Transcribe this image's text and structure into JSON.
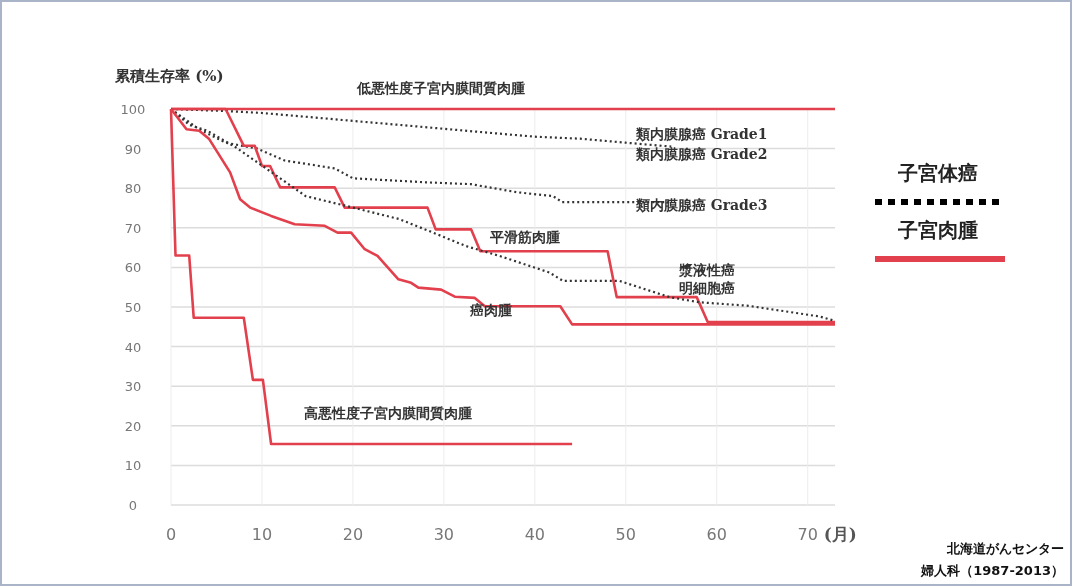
{
  "chart_data": {
    "type": "line",
    "ylabel": "累積生存率 (%)",
    "xlabel": "(月)",
    "xlim": [
      0,
      73
    ],
    "xticks": [
      0,
      10,
      20,
      30,
      40,
      50,
      60,
      70
    ],
    "ylim": [
      0,
      100
    ],
    "yticks": [
      0,
      10,
      20,
      30,
      40,
      50,
      60,
      70,
      80,
      90,
      100
    ],
    "grid": true,
    "marker": "none",
    "series": [
      {
        "name": "低悪性度子宮内膜間質肉腫",
        "color": "#e2404c",
        "line_style": "solid",
        "x": [
          0,
          73
        ],
        "values": [
          100,
          100
        ]
      },
      {
        "name": "類内膜腺癌 Grade1",
        "color": "#333333",
        "line_style": "dotted",
        "x": [
          0,
          6,
          10,
          15,
          20,
          25,
          30,
          35,
          40,
          45,
          50,
          55
        ],
        "values": [
          100,
          99.5,
          99,
          98,
          97,
          96,
          95,
          94,
          93,
          92.5,
          91.5,
          90.5
        ]
      },
      {
        "name": "類内膜腺癌 Grade3",
        "color": "#333333",
        "line_style": "dotted",
        "x": [
          0,
          3,
          6,
          9.5,
          12.5,
          18,
          20,
          28,
          33,
          38,
          42,
          43,
          55
        ],
        "values": [
          100,
          95,
          91.5,
          90,
          87,
          85,
          82.5,
          81.5,
          81,
          79,
          78,
          76.5,
          76.5
        ]
      },
      {
        "name": "平滑筋肉腫",
        "color": "#e2404c",
        "line_style": "solid",
        "x": [
          0,
          6,
          8,
          9.2,
          10,
          10.9,
          12,
          18,
          19.1,
          28.2,
          29.1,
          33,
          34,
          48,
          49,
          57.8,
          59,
          73
        ],
        "values": [
          100,
          100,
          90.7,
          90.7,
          85.6,
          85.6,
          80.2,
          80.2,
          75.1,
          75.1,
          69.6,
          69.6,
          64.1,
          64.1,
          52.5,
          52.5,
          46.2,
          46.2
        ]
      },
      {
        "name": "漿液性癌明細胞癌",
        "color": "#333333",
        "line_style": "dotted",
        "x": [
          0,
          2,
          4,
          7,
          12.7,
          14.8,
          19.3,
          25.1,
          28.8,
          32.4,
          36.1,
          41.6,
          43.1,
          49.3,
          54.8,
          58,
          63.5,
          71.3,
          73
        ],
        "values": [
          100,
          96,
          94.5,
          90.5,
          81.4,
          78,
          75.5,
          72.2,
          68.8,
          65.4,
          62.9,
          58.7,
          56.6,
          56.6,
          52.5,
          51.2,
          50.3,
          47.6,
          46.5
        ]
      },
      {
        "name": "癌肉腫",
        "color": "#e2404c",
        "line_style": "solid",
        "x": [
          0,
          1.7,
          3.1,
          4.2,
          6.5,
          7.6,
          8.7,
          11,
          13.6,
          16.9,
          18.3,
          19.8,
          21.3,
          22.7,
          25,
          26.4,
          27.2,
          29.7,
          31.2,
          33.4,
          34.5,
          42.8,
          44.1,
          73
        ],
        "values": [
          100,
          94.9,
          94.5,
          92.4,
          84,
          77.2,
          75.1,
          73,
          70.9,
          70.5,
          68.8,
          68.8,
          64.6,
          62.9,
          57,
          56.1,
          54.9,
          54.4,
          52.6,
          52.3,
          50.2,
          50.2,
          45.6,
          45.6
        ]
      },
      {
        "name": "高悪性度子宮内膜間質肉腫",
        "color": "#e2404c",
        "line_style": "solid",
        "x": [
          0,
          0.5,
          2,
          2.5,
          8,
          9,
          10.1,
          11,
          44.1
        ],
        "values": [
          100,
          63,
          63,
          47.3,
          47.3,
          31.6,
          31.6,
          15.4,
          15.4
        ]
      }
    ],
    "annotations": [
      "子宮体癌",
      "子宮肉腫",
      "北海道がんセンター",
      "婦人科（1987-2013）",
      "類内膜腺癌 Grade2"
    ]
  }
}
